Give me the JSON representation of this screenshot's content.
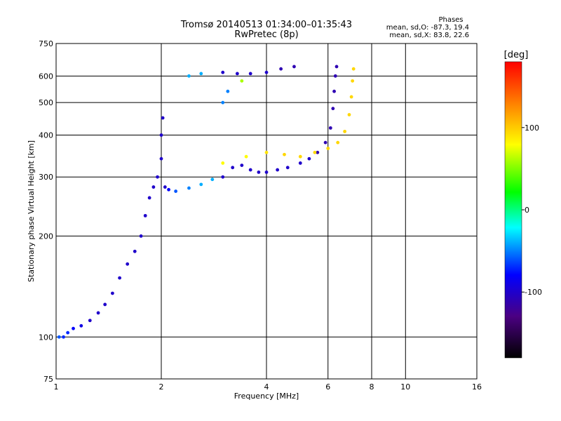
{
  "chart_data": {
    "type": "scatter",
    "title": "Tromsø 20140513 01:34:00–01:35:43",
    "subtitle": "RwPretec (8p)",
    "xlabel": "Frequency [MHz]",
    "ylabel": "Stationary phase Virtual Height [km]",
    "x_scale": "log",
    "y_scale": "log",
    "xlim": [
      1,
      16
    ],
    "ylim": [
      75,
      750
    ],
    "x_ticks": [
      1,
      2,
      4,
      6,
      8,
      10,
      16
    ],
    "x_tick_labels": [
      "1",
      "2",
      "4",
      "6",
      "8",
      "10",
      "16"
    ],
    "y_ticks": [
      75,
      100,
      200,
      300,
      400,
      500,
      600,
      750
    ],
    "y_tick_labels": [
      "75",
      "100",
      "200",
      "300",
      "400",
      "500",
      "600",
      "750"
    ],
    "grid": true,
    "legend": {
      "heading": "Phases",
      "line1": "mean, sd,O: -87.3, 19.4",
      "line2": "mean, sd,X:  83.8, 22.6"
    },
    "colorbar": {
      "unit": "[deg]",
      "range": [
        -180,
        180
      ],
      "tick_values": [
        100,
        0,
        -100
      ],
      "tick_labels": [
        "100",
        "0",
        "-100"
      ]
    },
    "series": [
      {
        "points": [
          {
            "x": 1.02,
            "y": 100,
            "p": -60
          },
          {
            "x": 1.05,
            "y": 100,
            "p": -70
          },
          {
            "x": 1.08,
            "y": 103,
            "p": -70
          },
          {
            "x": 1.12,
            "y": 106,
            "p": -80
          },
          {
            "x": 1.18,
            "y": 108,
            "p": -90
          },
          {
            "x": 1.25,
            "y": 112,
            "p": -100
          },
          {
            "x": 1.32,
            "y": 118,
            "p": -100
          },
          {
            "x": 1.38,
            "y": 125,
            "p": -100
          },
          {
            "x": 1.45,
            "y": 135,
            "p": -100
          },
          {
            "x": 1.52,
            "y": 150,
            "p": -100
          },
          {
            "x": 1.6,
            "y": 165,
            "p": -100
          },
          {
            "x": 1.68,
            "y": 180,
            "p": -100
          },
          {
            "x": 1.75,
            "y": 200,
            "p": -100
          },
          {
            "x": 1.8,
            "y": 230,
            "p": -100
          },
          {
            "x": 1.85,
            "y": 260,
            "p": -100
          },
          {
            "x": 1.9,
            "y": 280,
            "p": -100
          },
          {
            "x": 1.95,
            "y": 300,
            "p": -100
          },
          {
            "x": 2.0,
            "y": 340,
            "p": -100
          },
          {
            "x": 2.0,
            "y": 400,
            "p": -100
          },
          {
            "x": 2.02,
            "y": 450,
            "p": -100
          },
          {
            "x": 2.05,
            "y": 280,
            "p": -100
          },
          {
            "x": 2.1,
            "y": 275,
            "p": -80
          },
          {
            "x": 2.2,
            "y": 272,
            "p": -60
          },
          {
            "x": 2.4,
            "y": 278,
            "p": -50
          },
          {
            "x": 2.6,
            "y": 285,
            "p": -40
          },
          {
            "x": 2.8,
            "y": 295,
            "p": -40
          },
          {
            "x": 3.0,
            "y": 300,
            "p": -100
          },
          {
            "x": 3.2,
            "y": 320,
            "p": -100
          },
          {
            "x": 3.4,
            "y": 325,
            "p": -100
          },
          {
            "x": 3.6,
            "y": 315,
            "p": -100
          },
          {
            "x": 3.8,
            "y": 310,
            "p": -100
          },
          {
            "x": 4.0,
            "y": 310,
            "p": -100
          },
          {
            "x": 4.3,
            "y": 315,
            "p": -100
          },
          {
            "x": 4.6,
            "y": 320,
            "p": -100
          },
          {
            "x": 5.0,
            "y": 330,
            "p": -100
          },
          {
            "x": 5.3,
            "y": 340,
            "p": -100
          },
          {
            "x": 5.6,
            "y": 355,
            "p": -110
          },
          {
            "x": 5.9,
            "y": 380,
            "p": -110
          },
          {
            "x": 6.1,
            "y": 420,
            "p": -110
          },
          {
            "x": 6.2,
            "y": 480,
            "p": -110
          },
          {
            "x": 6.25,
            "y": 540,
            "p": -110
          },
          {
            "x": 6.3,
            "y": 600,
            "p": -110
          },
          {
            "x": 6.35,
            "y": 640,
            "p": -110
          },
          {
            "x": 2.4,
            "y": 600,
            "p": -40
          },
          {
            "x": 2.6,
            "y": 610,
            "p": -40
          },
          {
            "x": 3.0,
            "y": 615,
            "p": -100
          },
          {
            "x": 3.3,
            "y": 610,
            "p": -100
          },
          {
            "x": 3.6,
            "y": 610,
            "p": -100
          },
          {
            "x": 4.0,
            "y": 615,
            "p": -100
          },
          {
            "x": 4.4,
            "y": 630,
            "p": -110
          },
          {
            "x": 4.8,
            "y": 640,
            "p": -110
          },
          {
            "x": 3.0,
            "y": 500,
            "p": -50
          },
          {
            "x": 3.1,
            "y": 540,
            "p": -50
          },
          {
            "x": 3.4,
            "y": 580,
            "p": 60
          },
          {
            "x": 3.0,
            "y": 330,
            "p": 80
          },
          {
            "x": 3.5,
            "y": 345,
            "p": 80
          },
          {
            "x": 4.0,
            "y": 355,
            "p": 90
          },
          {
            "x": 4.5,
            "y": 350,
            "p": 95
          },
          {
            "x": 5.0,
            "y": 345,
            "p": 95
          },
          {
            "x": 5.5,
            "y": 355,
            "p": 95
          },
          {
            "x": 6.0,
            "y": 365,
            "p": 95
          },
          {
            "x": 6.4,
            "y": 380,
            "p": 95
          },
          {
            "x": 6.7,
            "y": 410,
            "p": 95
          },
          {
            "x": 6.9,
            "y": 460,
            "p": 95
          },
          {
            "x": 7.0,
            "y": 520,
            "p": 95
          },
          {
            "x": 7.05,
            "y": 580,
            "p": 95
          },
          {
            "x": 7.1,
            "y": 630,
            "p": 95
          }
        ]
      }
    ]
  }
}
